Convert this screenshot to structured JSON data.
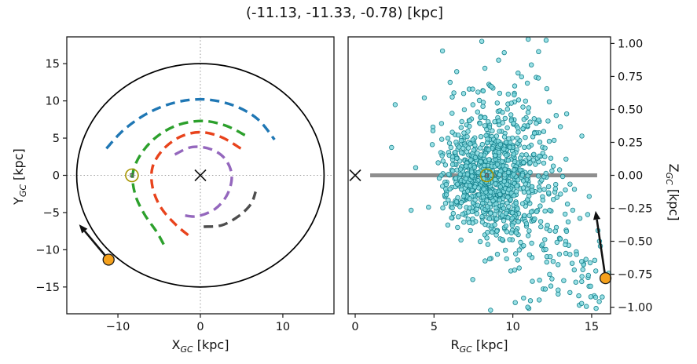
{
  "title": "(-11.13, -11.33, -0.78) [kpc]",
  "chart_data": [
    {
      "type": "line",
      "name": "galactocentric-XY-top-down-view",
      "xlabel": {
        "main": "X",
        "sub": "GC",
        "unit": "[kpc]"
      },
      "ylabel": {
        "main": "Y",
        "sub": "GC",
        "unit": "[kpc]"
      },
      "xlim": [
        -16.2,
        16.2
      ],
      "ylim": [
        -18.6,
        18.6
      ],
      "xticks": {
        "values": [
          -10,
          0,
          10
        ],
        "labels": [
          "−10",
          "0",
          "10"
        ]
      },
      "yticks": {
        "values": [
          15,
          10,
          5,
          0,
          -5,
          -10,
          -15
        ],
        "labels": [
          "15",
          "10",
          "5",
          "0",
          "−5",
          "−10",
          "−15"
        ]
      },
      "grid": false,
      "crosshair": {
        "x": 0,
        "y": 0,
        "color": "#9e9e9e"
      },
      "solar_circle": {
        "cx": 0,
        "cy": 0,
        "r": 15,
        "color": "#000000"
      },
      "galactic_center": {
        "x": 0,
        "y": 0,
        "marker": "x",
        "color": "#111111"
      },
      "sun": {
        "x": -8.3,
        "y": 0,
        "ring_color": "#a69500"
      },
      "spiral_arms": [
        {
          "color": "#1f77b4",
          "points": [
            [
              -11.4,
              3.6
            ],
            [
              -9.2,
              6.2
            ],
            [
              -6.3,
              8.4
            ],
            [
              -3.0,
              9.8
            ],
            [
              0.5,
              10.2
            ],
            [
              4.0,
              9.4
            ],
            [
              6.9,
              7.6
            ],
            [
              9.0,
              4.8
            ]
          ]
        },
        {
          "color": "#2ca02c",
          "points": [
            [
              5.4,
              5.4
            ],
            [
              3.0,
              6.7
            ],
            [
              0.2,
              7.3
            ],
            [
              -2.9,
              6.7
            ],
            [
              -5.5,
              5.0
            ],
            [
              -7.3,
              2.7
            ],
            [
              -8.2,
              0.2
            ],
            [
              -7.9,
              -2.6
            ],
            [
              -6.8,
              -5.2
            ],
            [
              -5.3,
              -7.6
            ],
            [
              -4.3,
              -9.6
            ]
          ]
        },
        {
          "color": "#e8431c",
          "points": [
            [
              4.9,
              3.6
            ],
            [
              2.6,
              5.1
            ],
            [
              0.1,
              5.8
            ],
            [
              -2.4,
              5.2
            ],
            [
              -4.5,
              3.5
            ],
            [
              -5.8,
              1.1
            ],
            [
              -5.8,
              -1.6
            ],
            [
              -4.8,
              -4.3
            ],
            [
              -3.1,
              -6.5
            ],
            [
              -1.4,
              -8.1
            ]
          ]
        },
        {
          "color": "#9467bd",
          "points": [
            [
              -3.1,
              2.8
            ],
            [
              -1.0,
              3.8
            ],
            [
              1.3,
              3.5
            ],
            [
              3.0,
              2.2
            ],
            [
              3.8,
              0.0
            ],
            [
              3.3,
              -2.5
            ],
            [
              1.8,
              -4.5
            ],
            [
              -0.4,
              -5.5
            ],
            [
              -2.3,
              -5.3
            ]
          ]
        },
        {
          "color": "#4d4d4d",
          "points": [
            [
              0.4,
              -6.9
            ],
            [
              2.6,
              -6.7
            ],
            [
              4.6,
              -5.5
            ],
            [
              6.1,
              -3.9
            ],
            [
              6.7,
              -2.2
            ]
          ]
        }
      ],
      "probe": {
        "x": -11.13,
        "y": -11.33,
        "color": "#f5a11c",
        "edge": "#1a1a1a",
        "arrow_tip": [
          -14.7,
          -6.6
        ]
      }
    },
    {
      "type": "scatter",
      "name": "galactocentric-R-Z-view",
      "xlabel": {
        "main": "R",
        "sub": "GC",
        "unit": "[kpc]"
      },
      "ylabel": {
        "main": "Z",
        "sub": "GC",
        "unit": "[kpc]"
      },
      "xlim": [
        -0.45,
        16.2
      ],
      "ylim": [
        -1.05,
        1.05
      ],
      "xticks": {
        "values": [
          0,
          5,
          10,
          15
        ],
        "labels": [
          "0",
          "5",
          "10",
          "15"
        ]
      },
      "yticks": {
        "values": [
          1.0,
          0.75,
          0.5,
          0.25,
          0.0,
          -0.25,
          -0.5,
          -0.75,
          -1.0
        ],
        "labels": [
          "1.00",
          "0.75",
          "0.50",
          "0.25",
          "0.00",
          "−0.25",
          "−0.50",
          "−0.75",
          "−1.00"
        ]
      },
      "grid": false,
      "plane_line": {
        "z": 0,
        "r_start": 0.95,
        "r_end": 15.35,
        "color": "#8e8e8e",
        "width": 5
      },
      "galactic_center": {
        "x": 0,
        "z": 0,
        "marker": "x",
        "color": "#111111"
      },
      "sun": {
        "x": 8.35,
        "z": 0,
        "ring_color": "#a69500"
      },
      "scatter": {
        "seed": 7,
        "point_radius": 2.8,
        "fill": "#7fd8de",
        "edge": "#15828d",
        "clusters": [
          {
            "n": 600,
            "cr": 8.4,
            "cz": 0.0,
            "sr": 1.35,
            "sz": 0.2
          },
          {
            "n": 220,
            "cr": 9.2,
            "cz": 0.05,
            "sr": 2.1,
            "sz": 0.38
          },
          {
            "n": 90,
            "cr": 11.3,
            "cz": -0.25,
            "sr": 1.7,
            "sz": 0.33
          },
          {
            "n": 60,
            "cr": 9.6,
            "cz": 0.5,
            "sr": 1.5,
            "sz": 0.27
          },
          {
            "n": 45,
            "cr": 13.2,
            "cz": -0.6,
            "sr": 1.2,
            "sz": 0.25
          },
          {
            "n": 25,
            "cr": 14.6,
            "cz": -0.85,
            "sr": 0.8,
            "sz": 0.12
          }
        ]
      },
      "probe": {
        "x": 15.88,
        "z": -0.78,
        "color": "#f5a11c",
        "edge": "#1a1a1a",
        "arrow_tip": [
          15.25,
          -0.27
        ]
      }
    }
  ]
}
